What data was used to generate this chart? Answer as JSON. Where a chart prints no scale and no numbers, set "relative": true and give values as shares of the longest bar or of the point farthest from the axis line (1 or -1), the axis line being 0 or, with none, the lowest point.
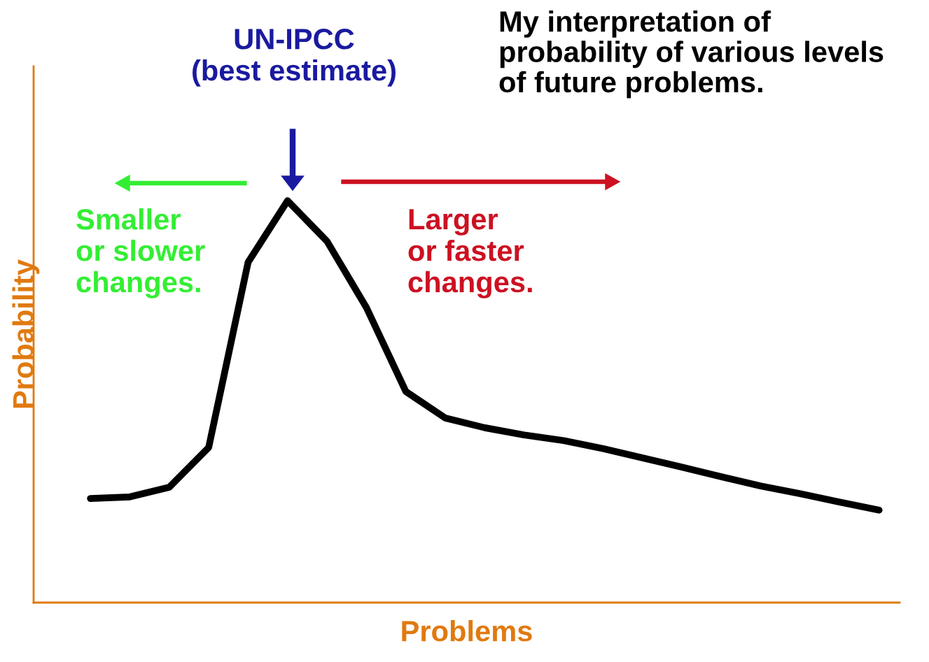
{
  "chart_data": {
    "type": "line",
    "relative": true,
    "title": "My interpretation of\nprobability of various levels\nof future problems.",
    "xlabel": "Problems",
    "ylabel": "Probability",
    "categories": [
      null,
      null,
      null,
      null,
      null,
      null,
      null,
      null,
      null,
      null,
      null,
      null,
      null,
      null,
      null,
      null,
      null,
      null,
      null,
      null,
      null
    ],
    "series": [
      {
        "color": "#000000",
        "values": [
          0.259,
          0.263,
          0.287,
          0.386,
          0.847,
          1.0,
          0.899,
          0.734,
          0.525,
          0.459,
          0.435,
          0.417,
          0.403,
          0.383,
          0.36,
          0.337,
          0.313,
          0.29,
          0.271,
          0.25,
          0.23
        ]
      }
    ],
    "annotations": [
      "UN-IPCC\n(best estimate)",
      "Smaller\nor slower\nchanges.",
      "Larger\nor faster\nchanges."
    ],
    "legend": false,
    "marker": "none",
    "line_style": "solid"
  }
}
